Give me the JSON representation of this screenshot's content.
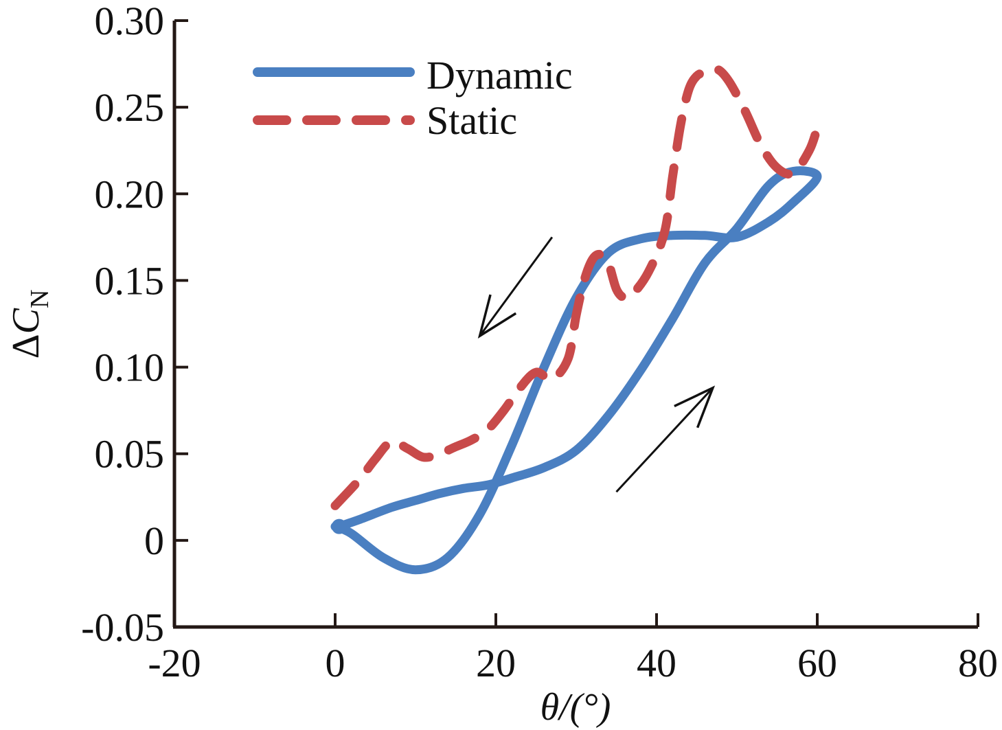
{
  "chart_data": {
    "type": "line",
    "xlabel": "θ/(°)",
    "ylabel": "ΔCN",
    "ylabel_parts": {
      "main": "Δ",
      "var": "C",
      "sub": "N"
    },
    "xlim": [
      -20,
      80
    ],
    "ylim": [
      -0.05,
      0.3
    ],
    "x_ticks": [
      -20,
      0,
      20,
      40,
      60,
      80
    ],
    "x_tick_labels": [
      "-20",
      "0",
      "20",
      "40",
      "60",
      "80"
    ],
    "y_ticks": [
      -0.05,
      0,
      0.05,
      0.1,
      0.15,
      0.2,
      0.25,
      0.3
    ],
    "y_tick_labels": [
      "-0.05",
      "0",
      "0.05",
      "0.10",
      "0.15",
      "0.20",
      "0.25",
      "0.30"
    ],
    "grid": false,
    "legend_position": "top-left",
    "series": [
      {
        "name": "Dynamic",
        "color": "#4a7fc1",
        "style": "solid",
        "x": [
          0.5,
          3,
          7,
          10,
          13,
          16,
          19,
          22,
          26,
          30,
          34,
          38,
          42,
          46,
          50,
          54,
          57,
          60,
          57,
          54,
          50,
          46,
          42,
          38,
          34,
          30,
          26,
          22,
          18,
          14,
          10,
          6,
          2,
          0
        ],
        "y": [
          0.008,
          0.012,
          0.019,
          0.023,
          0.027,
          0.03,
          0.032,
          0.036,
          0.042,
          0.052,
          0.072,
          0.098,
          0.128,
          0.16,
          0.18,
          0.205,
          0.213,
          0.21,
          0.195,
          0.184,
          0.175,
          0.176,
          0.176,
          0.174,
          0.166,
          0.14,
          0.1,
          0.055,
          0.015,
          -0.01,
          -0.017,
          -0.01,
          0.004,
          0.008
        ]
      },
      {
        "name": "Static",
        "color": "#c84a4a",
        "style": "dashed",
        "x": [
          0,
          3,
          5,
          7,
          9,
          11,
          13,
          15,
          17,
          19,
          21,
          23,
          25,
          27,
          29,
          30,
          31,
          32,
          33,
          34,
          35,
          36,
          37,
          39,
          41,
          42,
          43,
          44,
          45,
          46,
          47.5,
          49,
          51,
          53,
          55,
          57,
          59,
          60
        ],
        "y": [
          0.02,
          0.035,
          0.047,
          0.057,
          0.053,
          0.048,
          0.05,
          0.054,
          0.058,
          0.064,
          0.075,
          0.088,
          0.097,
          0.093,
          0.105,
          0.13,
          0.15,
          0.162,
          0.165,
          0.16,
          0.145,
          0.14,
          0.142,
          0.155,
          0.178,
          0.21,
          0.24,
          0.26,
          0.268,
          0.27,
          0.272,
          0.265,
          0.248,
          0.228,
          0.215,
          0.212,
          0.225,
          0.238
        ]
      }
    ],
    "annotations": [
      {
        "type": "arrow",
        "meaning": "decreasing θ (return path)",
        "from": [
          27,
          0.175
        ],
        "to": [
          18,
          0.118
        ]
      },
      {
        "type": "arrow",
        "meaning": "increasing θ (outgoing path)",
        "from": [
          35,
          0.028
        ],
        "to": [
          47,
          0.088
        ]
      }
    ]
  }
}
